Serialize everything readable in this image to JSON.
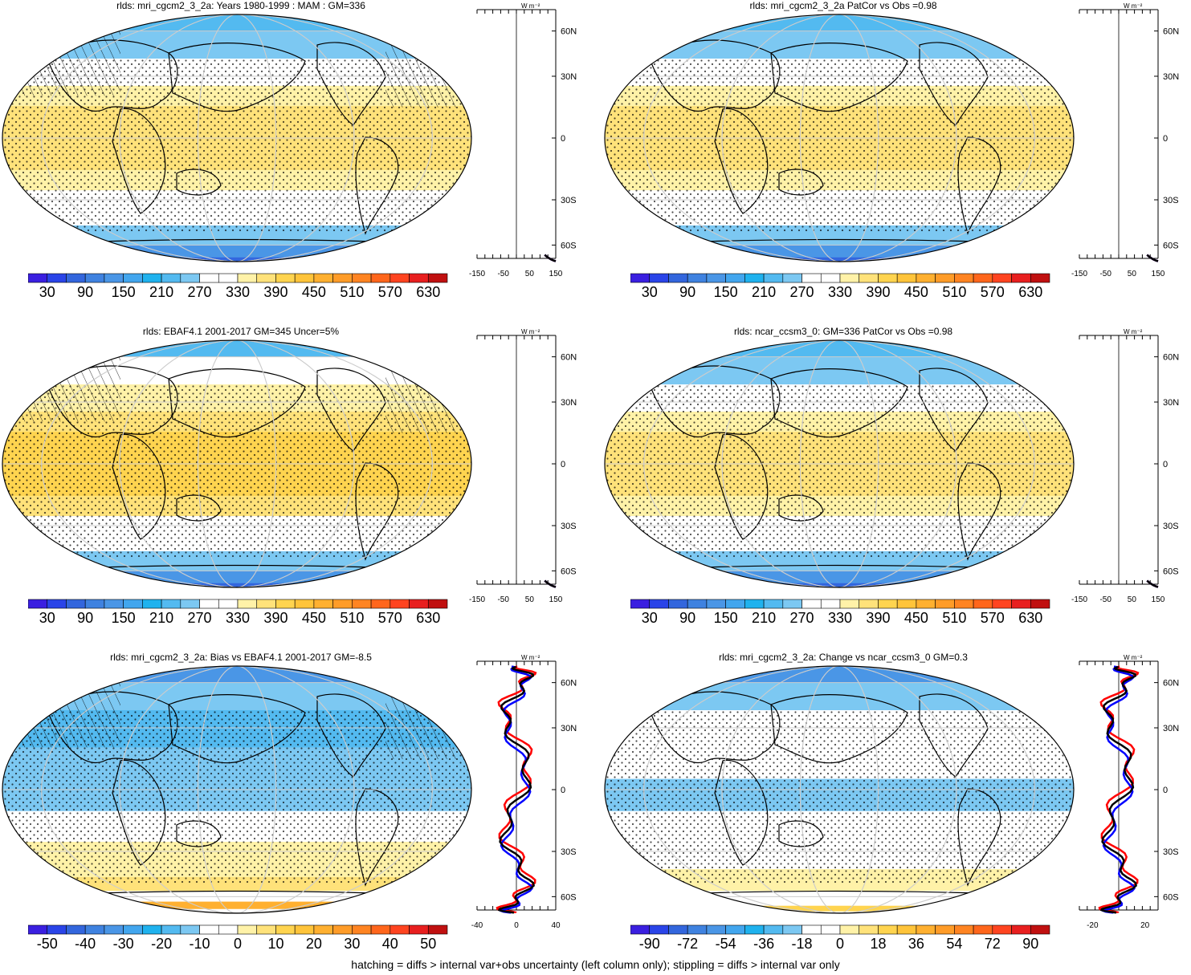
{
  "palette": {
    "absolute": [
      "#3a1fe0",
      "#2a44e8",
      "#3366dd",
      "#3f82e0",
      "#4a96e6",
      "#42a6ee",
      "#1fb2ee",
      "#53baf0",
      "#7cc8f2",
      "#ffffff",
      "#ffffff",
      "#fff2a8",
      "#ffe27a",
      "#ffd44f",
      "#ffc43a",
      "#ffb030",
      "#ff9c28",
      "#ff8422",
      "#ff661c",
      "#ff4420",
      "#e81f1f",
      "#c01010"
    ],
    "diff": [
      "#3a1fe0",
      "#2a44e8",
      "#3366dd",
      "#3f82e0",
      "#4a96e6",
      "#42a6ee",
      "#1fb2ee",
      "#53baf0",
      "#7cc8f2",
      "#ffffff",
      "#ffffff",
      "#fff2a8",
      "#ffe27a",
      "#ffd44f",
      "#ffc43a",
      "#ffb030",
      "#ff9c28",
      "#ff8422",
      "#ff661c",
      "#ff4420",
      "#e81f1f",
      "#c01010"
    ]
  },
  "panels": [
    {
      "id": "p1",
      "title": "rlds: mri_cgcm2_3_2a: Years 1980-1999 : MAM : GM=336",
      "kind": "absolute",
      "hatching": true,
      "cbar_labels": [
        "30",
        "90",
        "150",
        "210",
        "270",
        "330",
        "390",
        "450",
        "510",
        "570",
        "630"
      ],
      "zonal": {
        "unit": "W m⁻²",
        "ticks": [
          "-150",
          "-50",
          "50",
          "150"
        ],
        "range": [
          -150,
          150
        ]
      },
      "lat_labels": [
        "60N",
        "30N",
        "0",
        "30S",
        "60S"
      ],
      "bands": [
        {
          "lat": [
            60,
            90
          ],
          "c": "#53baf0"
        },
        {
          "lat": [
            40,
            60
          ],
          "c": "#7cc8f2"
        },
        {
          "lat": [
            25,
            40
          ],
          "c": "#ffffff"
        },
        {
          "lat": [
            15,
            25
          ],
          "c": "#fff2a8"
        },
        {
          "lat": [
            -15,
            15
          ],
          "c": "#ffe27a"
        },
        {
          "lat": [
            -25,
            -15
          ],
          "c": "#fff2a8"
        },
        {
          "lat": [
            -45,
            -25
          ],
          "c": "#ffffff"
        },
        {
          "lat": [
            -60,
            -45
          ],
          "c": "#7cc8f2"
        },
        {
          "lat": [
            -75,
            -60
          ],
          "c": "#4a96e6"
        },
        {
          "lat": [
            -90,
            -75
          ],
          "c": "#3366dd"
        }
      ]
    },
    {
      "id": "p2",
      "title": "rlds: mri_cgcm2_3_2a PatCor vs Obs =0.98",
      "kind": "absolute",
      "hatching": false,
      "cbar_labels": [
        "30",
        "90",
        "150",
        "210",
        "270",
        "330",
        "390",
        "450",
        "510",
        "570",
        "630"
      ],
      "zonal": {
        "unit": "W m⁻²",
        "ticks": [
          "-150",
          "-50",
          "50",
          "150"
        ],
        "range": [
          -150,
          150
        ]
      },
      "lat_labels": [
        "60N",
        "30N",
        "0",
        "30S",
        "60S"
      ],
      "bands": [
        {
          "lat": [
            60,
            90
          ],
          "c": "#53baf0"
        },
        {
          "lat": [
            40,
            60
          ],
          "c": "#7cc8f2"
        },
        {
          "lat": [
            25,
            40
          ],
          "c": "#ffffff"
        },
        {
          "lat": [
            15,
            25
          ],
          "c": "#fff2a8"
        },
        {
          "lat": [
            -15,
            15
          ],
          "c": "#ffe27a"
        },
        {
          "lat": [
            -25,
            -15
          ],
          "c": "#fff2a8"
        },
        {
          "lat": [
            -45,
            -25
          ],
          "c": "#ffffff"
        },
        {
          "lat": [
            -60,
            -45
          ],
          "c": "#7cc8f2"
        },
        {
          "lat": [
            -75,
            -60
          ],
          "c": "#4a96e6"
        },
        {
          "lat": [
            -90,
            -75
          ],
          "c": "#3366dd"
        }
      ]
    },
    {
      "id": "p3",
      "title": "rlds: EBAF4.1 2001-2017 GM=345 Uncer=5%",
      "kind": "absolute",
      "hatching": true,
      "cbar_labels": [
        "30",
        "90",
        "150",
        "210",
        "270",
        "330",
        "390",
        "450",
        "510",
        "570",
        "630"
      ],
      "zonal": {
        "unit": "W m⁻²",
        "ticks": [
          "-150",
          "-50",
          "50",
          "150"
        ],
        "range": [
          -150,
          150
        ]
      },
      "lat_labels": [
        "60N",
        "30N",
        "0",
        "30S",
        "60S"
      ],
      "bands": [
        {
          "lat": [
            60,
            90
          ],
          "c": "#53baf0"
        },
        {
          "lat": [
            40,
            60
          ],
          "c": "#ffffff"
        },
        {
          "lat": [
            25,
            40
          ],
          "c": "#fff2a8"
        },
        {
          "lat": [
            15,
            25
          ],
          "c": "#ffe27a"
        },
        {
          "lat": [
            -15,
            15
          ],
          "c": "#ffd44f"
        },
        {
          "lat": [
            -25,
            -15
          ],
          "c": "#ffe27a"
        },
        {
          "lat": [
            -45,
            -25
          ],
          "c": "#ffffff"
        },
        {
          "lat": [
            -60,
            -45
          ],
          "c": "#7cc8f2"
        },
        {
          "lat": [
            -75,
            -60
          ],
          "c": "#4a96e6"
        },
        {
          "lat": [
            -90,
            -75
          ],
          "c": "#3366dd"
        }
      ]
    },
    {
      "id": "p4",
      "title": "rlds: ncar_ccsm3_0: GM=336 PatCor vs Obs =0.98",
      "kind": "absolute",
      "hatching": false,
      "cbar_labels": [
        "30",
        "90",
        "150",
        "210",
        "270",
        "330",
        "390",
        "450",
        "510",
        "570",
        "630"
      ],
      "zonal": {
        "unit": "W m⁻²",
        "ticks": [
          "-150",
          "-50",
          "50",
          "150"
        ],
        "range": [
          -150,
          150
        ]
      },
      "lat_labels": [
        "60N",
        "30N",
        "0",
        "30S",
        "60S"
      ],
      "bands": [
        {
          "lat": [
            60,
            90
          ],
          "c": "#53baf0"
        },
        {
          "lat": [
            40,
            60
          ],
          "c": "#7cc8f2"
        },
        {
          "lat": [
            25,
            40
          ],
          "c": "#ffffff"
        },
        {
          "lat": [
            15,
            25
          ],
          "c": "#fff2a8"
        },
        {
          "lat": [
            -15,
            15
          ],
          "c": "#ffe27a"
        },
        {
          "lat": [
            -25,
            -15
          ],
          "c": "#fff2a8"
        },
        {
          "lat": [
            -45,
            -25
          ],
          "c": "#ffffff"
        },
        {
          "lat": [
            -60,
            -45
          ],
          "c": "#7cc8f2"
        },
        {
          "lat": [
            -75,
            -60
          ],
          "c": "#4a96e6"
        },
        {
          "lat": [
            -90,
            -75
          ],
          "c": "#3366dd"
        }
      ]
    },
    {
      "id": "p5",
      "title": "rlds: mri_cgcm2_3_2a: Bias vs EBAF4.1 2001-2017 GM=-8.5",
      "kind": "diff",
      "hatching": true,
      "cbar_labels": [
        "-50",
        "-40",
        "-30",
        "-20",
        "-10",
        "0",
        "10",
        "20",
        "30",
        "40",
        "50"
      ],
      "zonal": {
        "unit": "W m⁻²",
        "ticks": [
          "-40",
          "0",
          "40"
        ],
        "range": [
          -40,
          40
        ]
      },
      "lat_labels": [
        "60N",
        "30N",
        "0",
        "30S",
        "60S"
      ],
      "bands": [
        {
          "lat": [
            60,
            90
          ],
          "c": "#4a96e6"
        },
        {
          "lat": [
            40,
            60
          ],
          "c": "#7cc8f2"
        },
        {
          "lat": [
            20,
            40
          ],
          "c": "#53baf0"
        },
        {
          "lat": [
            -10,
            20
          ],
          "c": "#7cc8f2"
        },
        {
          "lat": [
            -25,
            -10
          ],
          "c": "#ffffff"
        },
        {
          "lat": [
            -45,
            -25
          ],
          "c": "#fff2a8"
        },
        {
          "lat": [
            -55,
            -45
          ],
          "c": "#ffe27a"
        },
        {
          "lat": [
            -65,
            -55
          ],
          "c": "#ffffff"
        },
        {
          "lat": [
            -75,
            -65
          ],
          "c": "#ffb030"
        },
        {
          "lat": [
            -90,
            -75
          ],
          "c": "#ffffff"
        }
      ]
    },
    {
      "id": "p6",
      "title": "rlds: mri_cgcm2_3_2a: Change vs ncar_ccsm3_0 GM=0.3",
      "kind": "diff",
      "hatching": false,
      "cbar_labels": [
        "-90",
        "-72",
        "-54",
        "-36",
        "-18",
        "0",
        "18",
        "36",
        "54",
        "72",
        "90"
      ],
      "zonal": {
        "unit": "W m⁻²",
        "ticks": [
          "-20",
          "20"
        ],
        "range": [
          -30,
          30
        ]
      },
      "lat_labels": [
        "60N",
        "30N",
        "0",
        "30S",
        "60S"
      ],
      "bands": [
        {
          "lat": [
            60,
            90
          ],
          "c": "#4a96e6"
        },
        {
          "lat": [
            40,
            60
          ],
          "c": "#7cc8f2"
        },
        {
          "lat": [
            20,
            40
          ],
          "c": "#ffffff"
        },
        {
          "lat": [
            5,
            20
          ],
          "c": "#ffffff"
        },
        {
          "lat": [
            -10,
            5
          ],
          "c": "#7cc8f2"
        },
        {
          "lat": [
            -40,
            -10
          ],
          "c": "#ffffff"
        },
        {
          "lat": [
            -55,
            -40
          ],
          "c": "#fff2a8"
        },
        {
          "lat": [
            -70,
            -55
          ],
          "c": "#ffffff"
        },
        {
          "lat": [
            -80,
            -70
          ],
          "c": "#ffd44f"
        },
        {
          "lat": [
            -90,
            -80
          ],
          "c": "#ffffff"
        }
      ]
    }
  ],
  "footer": "hatching = diffs > internal var+obs uncertainty (left column only); stippling = diffs > internal var only"
}
